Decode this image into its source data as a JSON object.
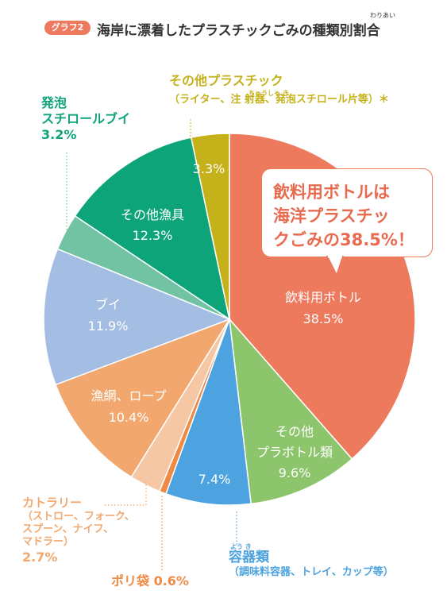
{
  "header": {
    "badge": "グラフ2",
    "title": "海岸に漂着したプラスチックごみの種類別割合",
    "ruby": "わりあい"
  },
  "callout": {
    "lines": [
      "飲料用ボトルは",
      "海洋プラスチッ",
      "クごみの38.5%！"
    ]
  },
  "chart_data": {
    "type": "pie",
    "title": "海岸に漂着したプラスチックごみの種類別割合",
    "unit": "%",
    "slices": [
      {
        "id": "drink-bottle",
        "label": "飲料用ボトル",
        "value": 38.5,
        "value_text": "38.5%",
        "color": "#ee7a5e"
      },
      {
        "id": "other-bottle",
        "label": "その他プラボトル類",
        "value": 9.6,
        "value_text": "9.6%",
        "color": "#8cc56b"
      },
      {
        "id": "container",
        "label": "容器類（調味料容器、トレイ、カップ等）",
        "value": 7.4,
        "value_text": "7.4%",
        "color": "#4da3e0"
      },
      {
        "id": "plastic-bag",
        "label": "ポリ袋",
        "value": 0.6,
        "value_text": "0.6%",
        "color": "#ef8a45"
      },
      {
        "id": "cutlery",
        "label": "カトラリー（ストロー、フォーク、スプーン、ナイフ、マドラー）",
        "value": 2.7,
        "value_text": "2.7%",
        "color": "#f6c7a4"
      },
      {
        "id": "fishing-net",
        "label": "漁網、ロープ",
        "value": 10.4,
        "value_text": "10.4%",
        "color": "#f1a76d"
      },
      {
        "id": "buoy",
        "label": "ブイ",
        "value": 11.9,
        "value_text": "11.9%",
        "color": "#a3bde3"
      },
      {
        "id": "foam-buoy",
        "label": "発泡スチロールブイ",
        "value": 3.2,
        "value_text": "3.2%",
        "color": "#72c2a4"
      },
      {
        "id": "other-fishing",
        "label": "その他漁具",
        "value": 12.3,
        "value_text": "12.3%",
        "color": "#0ea47a"
      },
      {
        "id": "other-plastic",
        "label": "その他プラスチック（ライター、注射器、発泡スチロール片等）",
        "value": 3.3,
        "value_text": "3.3%",
        "color": "#c5b11a"
      }
    ],
    "labels": {
      "drink_1": "飲料用ボトル",
      "drink_2": "38.5%",
      "otherbottle_1": "その他",
      "otherbottle_2": "プラボトル類",
      "otherbottle_3": "9.6%",
      "container_val": "7.4%",
      "net_1": "漁網、ロープ",
      "net_2": "10.4%",
      "buoy_1": "ブイ",
      "buoy_2": "11.9%",
      "fishing_1": "その他漁具",
      "fishing_2": "12.3%",
      "otherplastic_val": "3.3%"
    },
    "external": {
      "foam_1": "発泡",
      "foam_2": "スチロールブイ",
      "foam_3": "3.2%",
      "otherplastic_1": "その他プラスチック",
      "otherplastic_2": "（ライター、注 射器、発泡スチロール片等）＊",
      "otherplastic_ruby": "ちゅうしゃ き",
      "cutlery_1": "カトラリー",
      "cutlery_2": "（ストロー、フォーク、",
      "cutlery_3": "スプーン、ナイフ、",
      "cutlery_4": "マドラー）",
      "cutlery_5": "2.7%",
      "bag": "ポリ袋 0.6%",
      "container_ruby": "よう き",
      "container_1": "容器類",
      "container_2": "（調味料容器、トレイ、カップ等）"
    }
  }
}
